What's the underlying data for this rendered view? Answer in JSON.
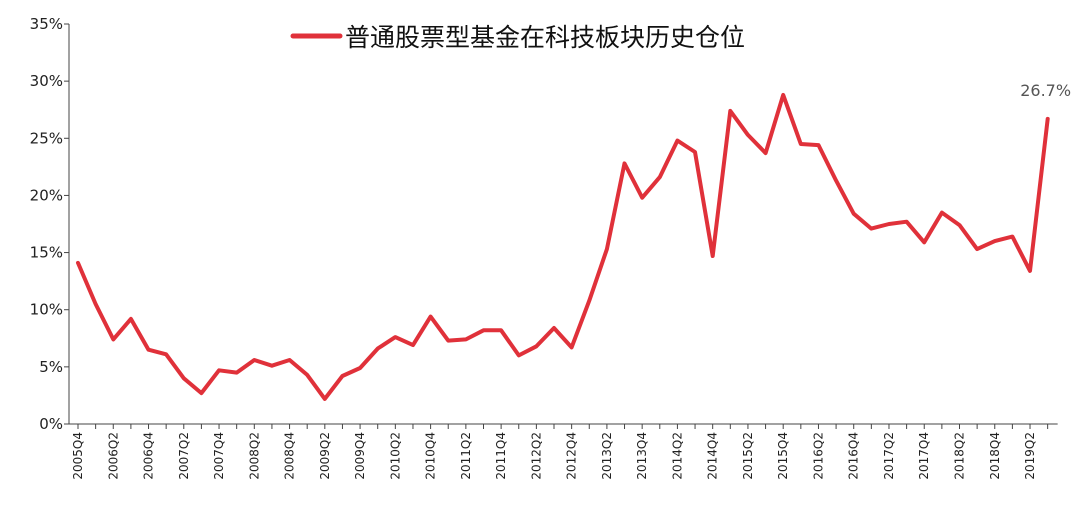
{
  "chart_data": {
    "type": "line",
    "title": "",
    "xlabel": "",
    "ylabel": "",
    "ylim": [
      0,
      35
    ],
    "ytick_labels": [
      "0%",
      "5%",
      "10%",
      "15%",
      "20%",
      "25%",
      "30%",
      "35%"
    ],
    "ytick_values": [
      0,
      5,
      10,
      15,
      20,
      25,
      30,
      35
    ],
    "grid": false,
    "legend_position": "top-center",
    "colors": {
      "line": "#e0313a",
      "axis": "#444444",
      "text": "#222222",
      "annotation": "#555555"
    },
    "x": [
      "2005Q4",
      "2006Q1",
      "2006Q2",
      "2006Q3",
      "2006Q4",
      "2007Q1",
      "2007Q2",
      "2007Q3",
      "2007Q4",
      "2008Q1",
      "2008Q2",
      "2008Q3",
      "2008Q4",
      "2009Q1",
      "2009Q2",
      "2009Q3",
      "2009Q4",
      "2010Q1",
      "2010Q2",
      "2010Q3",
      "2010Q4",
      "2011Q1",
      "2011Q2",
      "2011Q3",
      "2011Q4",
      "2012Q1",
      "2012Q2",
      "2012Q3",
      "2012Q4",
      "2013Q1",
      "2013Q2",
      "2013Q3",
      "2013Q4",
      "2014Q1",
      "2014Q2",
      "2014Q3",
      "2014Q4",
      "2015Q1",
      "2015Q2",
      "2015Q3",
      "2015Q4",
      "2016Q1",
      "2016Q2",
      "2016Q3",
      "2016Q4",
      "2017Q1",
      "2017Q2",
      "2017Q3",
      "2017Q4",
      "2018Q1",
      "2018Q2",
      "2018Q3",
      "2018Q4",
      "2019Q1",
      "2019Q2",
      "2019Q3"
    ],
    "x_tick_labels": [
      "2005Q4",
      "2006Q2",
      "2006Q4",
      "2007Q2",
      "2007Q4",
      "2008Q2",
      "2008Q4",
      "2009Q2",
      "2009Q4",
      "2010Q2",
      "2010Q4",
      "2011Q2",
      "2011Q4",
      "2012Q2",
      "2012Q4",
      "2013Q2",
      "2013Q4",
      "2014Q2",
      "2014Q4",
      "2015Q2",
      "2015Q4",
      "2016Q2",
      "2016Q4",
      "2017Q2",
      "2017Q4",
      "2018Q2",
      "2018Q4",
      "2019Q2"
    ],
    "series": [
      {
        "name": "普通股票型基金在科技板块历史仓位",
        "values": [
          14.1,
          10.5,
          7.4,
          9.2,
          6.5,
          6.1,
          4.0,
          2.7,
          4.7,
          4.5,
          5.6,
          5.1,
          5.6,
          4.3,
          2.2,
          4.2,
          4.9,
          6.6,
          7.6,
          6.9,
          9.4,
          7.3,
          7.4,
          8.2,
          8.2,
          6.0,
          6.8,
          8.4,
          6.7,
          10.8,
          15.3,
          22.8,
          19.8,
          21.6,
          24.8,
          23.8,
          14.7,
          27.4,
          25.3,
          23.7,
          28.8,
          24.5,
          24.4,
          21.3,
          18.4,
          17.1,
          17.5,
          17.7,
          15.9,
          18.5,
          17.4,
          15.3,
          16.0,
          16.4,
          13.4,
          26.7
        ]
      }
    ],
    "annotations": [
      {
        "label": "26.7%",
        "at": "2019Q3"
      }
    ]
  }
}
